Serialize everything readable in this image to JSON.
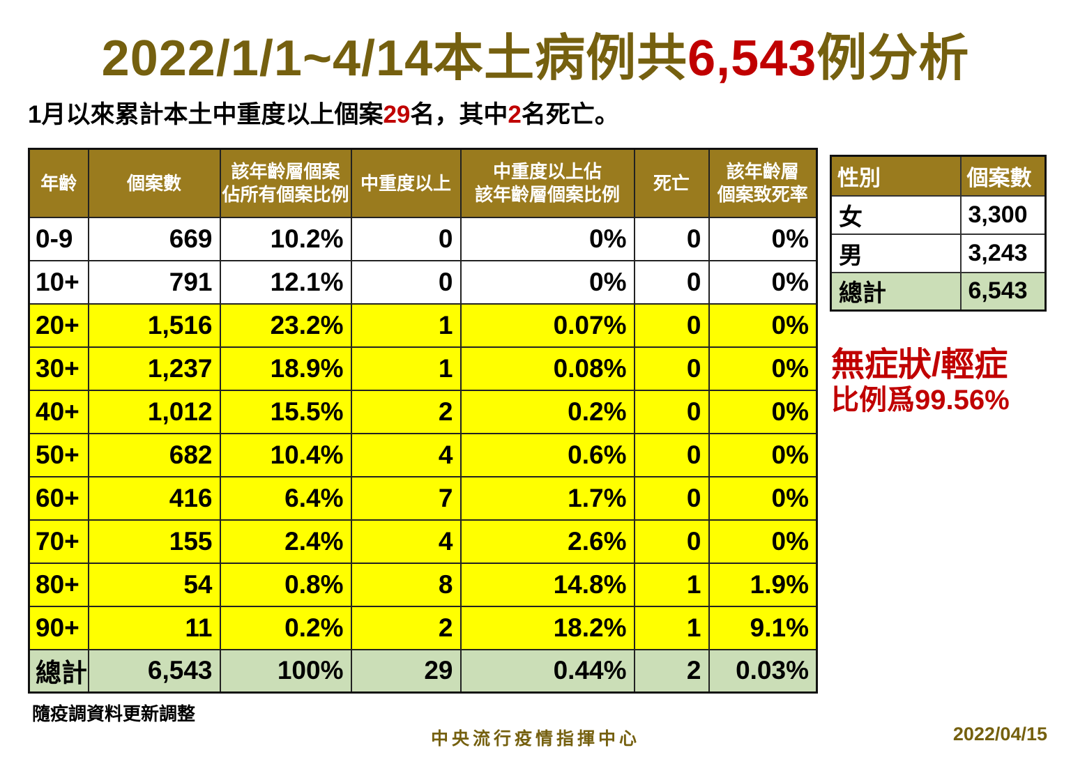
{
  "title": {
    "prefix": "2022/1/1~4/14本土病例共",
    "highlight": "6,543",
    "suffix": "例分析"
  },
  "subtitle": {
    "part1": "1月以來累計本土中重度以上個案",
    "highlight1": "29",
    "part2": "名，其中",
    "highlight2": "2",
    "part3": "名死亡。"
  },
  "main_table": {
    "headers": [
      "年齡",
      "個案數",
      "該年齡層個案\n佔所有個案比例",
      "中重度以上",
      "中重度以上佔\n該年齡層個案比例",
      "死亡",
      "該年齡層\n個案致死率"
    ],
    "rows": [
      {
        "bg": "white",
        "cells": [
          "0-9",
          "669",
          "10.2%",
          "0",
          "0%",
          "0",
          "0%"
        ]
      },
      {
        "bg": "white",
        "cells": [
          "10+",
          "791",
          "12.1%",
          "0",
          "0%",
          "0",
          "0%"
        ]
      },
      {
        "bg": "yellow",
        "cells": [
          "20+",
          "1,516",
          "23.2%",
          "1",
          "0.07%",
          "0",
          "0%"
        ]
      },
      {
        "bg": "yellow",
        "cells": [
          "30+",
          "1,237",
          "18.9%",
          "1",
          "0.08%",
          "0",
          "0%"
        ]
      },
      {
        "bg": "yellow",
        "cells": [
          "40+",
          "1,012",
          "15.5%",
          "2",
          "0.2%",
          "0",
          "0%"
        ]
      },
      {
        "bg": "yellow",
        "cells": [
          "50+",
          "682",
          "10.4%",
          "4",
          "0.6%",
          "0",
          "0%"
        ]
      },
      {
        "bg": "yellow",
        "cells": [
          "60+",
          "416",
          "6.4%",
          "7",
          "1.7%",
          "0",
          "0%"
        ]
      },
      {
        "bg": "yellow",
        "cells": [
          "70+",
          "155",
          "2.4%",
          "4",
          "2.6%",
          "0",
          "0%"
        ]
      },
      {
        "bg": "yellow",
        "cells": [
          "80+",
          "54",
          "0.8%",
          "8",
          "14.8%",
          "1",
          "1.9%"
        ]
      },
      {
        "bg": "yellow",
        "cells": [
          "90+",
          "11",
          "0.2%",
          "2",
          "18.2%",
          "1",
          "9.1%"
        ]
      },
      {
        "bg": "green",
        "cells": [
          "總計",
          "6,543",
          "100%",
          "29",
          "0.44%",
          "2",
          "0.03%"
        ]
      }
    ]
  },
  "gender_table": {
    "headers": [
      "性別",
      "個案數"
    ],
    "rows": [
      {
        "bg": "white",
        "cells": [
          "女",
          "3,300"
        ]
      },
      {
        "bg": "white",
        "cells": [
          "男",
          "3,243"
        ]
      },
      {
        "bg": "green",
        "cells": [
          "總計",
          "6,543"
        ]
      }
    ]
  },
  "callout": {
    "line1": "無症狀/輕症",
    "line2": "比例爲99.56%"
  },
  "footer": {
    "note": "隨疫調資料更新調整",
    "org": "中央流行疫情指揮中心",
    "date": "2022/04/15"
  },
  "colors": {
    "accent_olive": "#75600f",
    "header_gold": "#9a7b1e",
    "accent_red": "#c00000",
    "row_yellow": "#ffff00",
    "total_green": "#cbdeb7"
  }
}
